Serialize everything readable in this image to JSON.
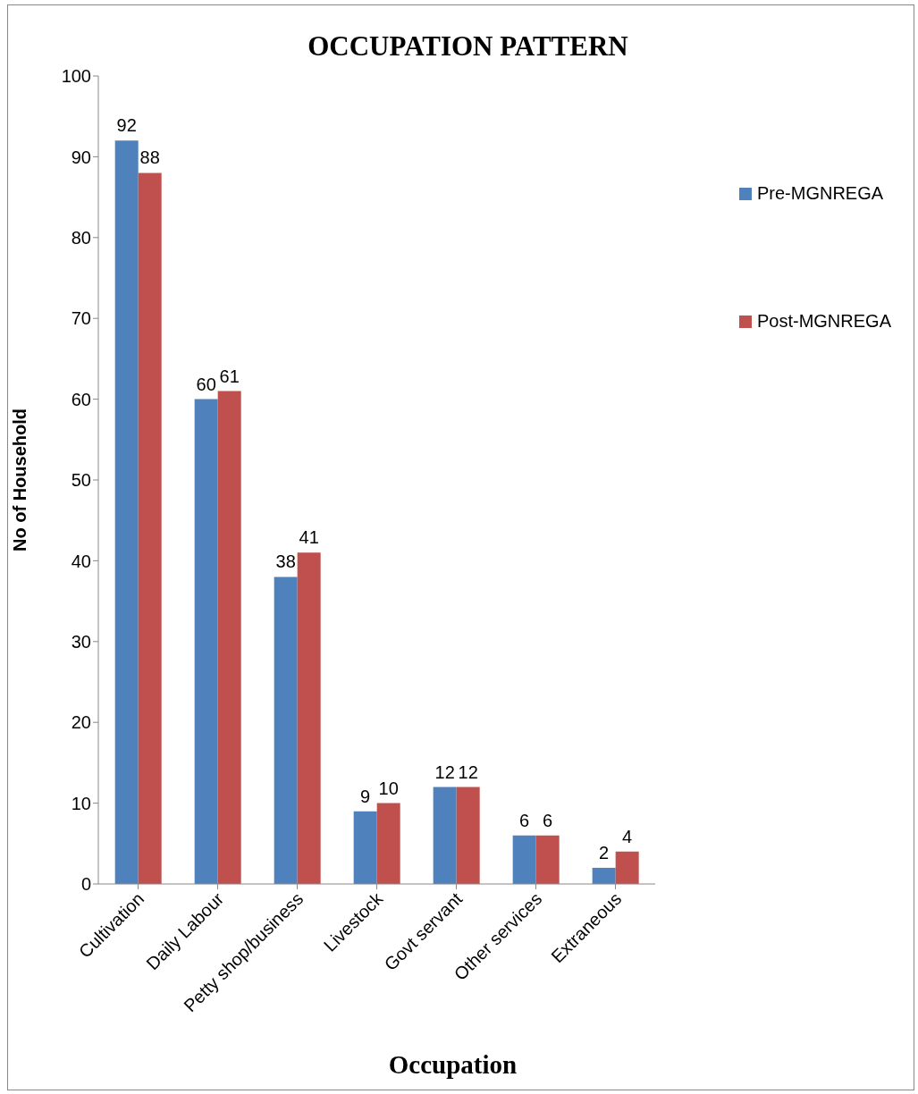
{
  "chart_data": {
    "type": "bar",
    "title": "OCCUPATION PATTERN",
    "xlabel": "Occupation",
    "ylabel": "No of Household",
    "categories": [
      "Cultivation",
      "Daily Labour",
      "Petty shop/business",
      "Livestock",
      "Govt servant",
      "Other services",
      "Extraneous"
    ],
    "series": [
      {
        "name": "Pre-MGNREGA",
        "color": "#4f81bd",
        "values": [
          92,
          60,
          38,
          9,
          12,
          6,
          2
        ]
      },
      {
        "name": "Post-MGNREGA",
        "color": "#c0504d",
        "values": [
          88,
          61,
          41,
          10,
          12,
          6,
          4
        ]
      }
    ],
    "ylim": [
      0,
      100
    ],
    "yticks": [
      0,
      10,
      20,
      30,
      40,
      50,
      60,
      70,
      80,
      90,
      100
    ],
    "grid": false,
    "legend": "top right",
    "data_labels": true
  }
}
